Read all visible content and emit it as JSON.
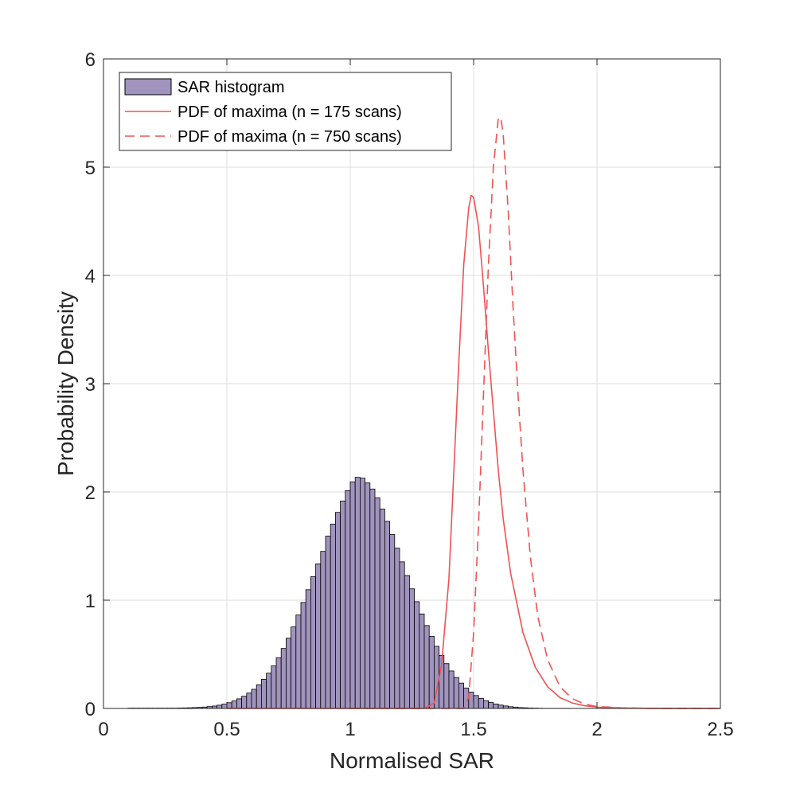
{
  "chart_data": {
    "type": "bar",
    "title": "",
    "xlabel": "Normalised SAR",
    "ylabel": "Probability Density",
    "xlim": [
      0,
      2.5
    ],
    "ylim": [
      0,
      6
    ],
    "grid": true,
    "legend_location": "top-left",
    "x_ticks": [
      {
        "value": 0,
        "label": "0"
      },
      {
        "value": 0.5,
        "label": "0.5"
      },
      {
        "value": 1,
        "label": "1"
      },
      {
        "value": 1.5,
        "label": "1.5"
      },
      {
        "value": 2,
        "label": "2"
      },
      {
        "value": 2.5,
        "label": "2.5"
      }
    ],
    "y_ticks": [
      {
        "value": 0,
        "label": "0"
      },
      {
        "value": 1,
        "label": "1"
      },
      {
        "value": 2,
        "label": "2"
      },
      {
        "value": 3,
        "label": "3"
      },
      {
        "value": 4,
        "label": "4"
      },
      {
        "value": 5,
        "label": "5"
      },
      {
        "value": 6,
        "label": "6"
      }
    ],
    "histogram": {
      "name": "SAR histogram",
      "color": "#a093bd",
      "edge_color": "#000000",
      "bin_width": 0.02,
      "bin_start": 0.1,
      "values": [
        0.003,
        0.003,
        0.003,
        0.003,
        0.003,
        0.003,
        0.003,
        0.003,
        0.003,
        0.003,
        0.004,
        0.005,
        0.006,
        0.008,
        0.01,
        0.013,
        0.017,
        0.022,
        0.03,
        0.04,
        0.053,
        0.069,
        0.089,
        0.113,
        0.142,
        0.177,
        0.219,
        0.269,
        0.326,
        0.393,
        0.469,
        0.554,
        0.649,
        0.753,
        0.863,
        0.979,
        1.097,
        1.217,
        1.336,
        1.451,
        1.592,
        1.703,
        1.811,
        1.916,
        2.012,
        2.093,
        2.135,
        2.127,
        2.083,
        2.027,
        1.945,
        1.842,
        1.728,
        1.607,
        1.481,
        1.354,
        1.228,
        1.105,
        0.986,
        0.873,
        0.766,
        0.666,
        0.574,
        0.49,
        0.414,
        0.346,
        0.286,
        0.234,
        0.189,
        0.151,
        0.119,
        0.093,
        0.072,
        0.055,
        0.041,
        0.031,
        0.023,
        0.016,
        0.012,
        0.008,
        0.006,
        0.004,
        0.003,
        0.002,
        0.001,
        0.001,
        0.001,
        0.001,
        0.001,
        0.001
      ]
    },
    "series": [
      {
        "name": "PDF of maxima (n = 175 scans)",
        "style": "solid",
        "color": "#f05252",
        "points": [
          [
            0.5,
            0
          ],
          [
            1.3,
            0
          ],
          [
            1.34,
            0.05
          ],
          [
            1.37,
            0.4
          ],
          [
            1.4,
            1.2
          ],
          [
            1.42,
            2.2
          ],
          [
            1.44,
            3.2
          ],
          [
            1.46,
            4.1
          ],
          [
            1.48,
            4.62
          ],
          [
            1.49,
            4.74
          ],
          [
            1.5,
            4.72
          ],
          [
            1.52,
            4.45
          ],
          [
            1.54,
            3.9
          ],
          [
            1.56,
            3.3
          ],
          [
            1.58,
            2.75
          ],
          [
            1.6,
            2.2
          ],
          [
            1.62,
            1.75
          ],
          [
            1.65,
            1.25
          ],
          [
            1.7,
            0.7
          ],
          [
            1.75,
            0.38
          ],
          [
            1.8,
            0.2
          ],
          [
            1.85,
            0.1
          ],
          [
            1.9,
            0.05
          ],
          [
            1.95,
            0.025
          ],
          [
            2.0,
            0.012
          ],
          [
            2.1,
            0.004
          ],
          [
            2.2,
            0.001
          ],
          [
            2.5,
            0
          ]
        ]
      },
      {
        "name": "PDF of maxima (n = 750 scans)",
        "style": "dashed",
        "color": "#f05252",
        "points": [
          [
            1.0,
            0
          ],
          [
            1.46,
            0
          ],
          [
            1.48,
            0.1
          ],
          [
            1.5,
            0.7
          ],
          [
            1.52,
            1.7
          ],
          [
            1.54,
            2.9
          ],
          [
            1.56,
            4.1
          ],
          [
            1.58,
            5.0
          ],
          [
            1.6,
            5.45
          ],
          [
            1.61,
            5.46
          ],
          [
            1.62,
            5.3
          ],
          [
            1.64,
            4.6
          ],
          [
            1.66,
            3.7
          ],
          [
            1.68,
            2.9
          ],
          [
            1.7,
            2.2
          ],
          [
            1.73,
            1.4
          ],
          [
            1.76,
            0.85
          ],
          [
            1.8,
            0.45
          ],
          [
            1.85,
            0.2
          ],
          [
            1.9,
            0.09
          ],
          [
            1.95,
            0.04
          ],
          [
            2.0,
            0.018
          ],
          [
            2.1,
            0.005
          ],
          [
            2.2,
            0.001
          ],
          [
            2.5,
            0
          ]
        ]
      }
    ],
    "legend": [
      {
        "label": "SAR histogram",
        "kind": "patch"
      },
      {
        "label": "PDF of maxima (n = 175 scans)",
        "kind": "solid"
      },
      {
        "label": "PDF of maxima (n = 750 scans)",
        "kind": "dashed"
      }
    ]
  }
}
